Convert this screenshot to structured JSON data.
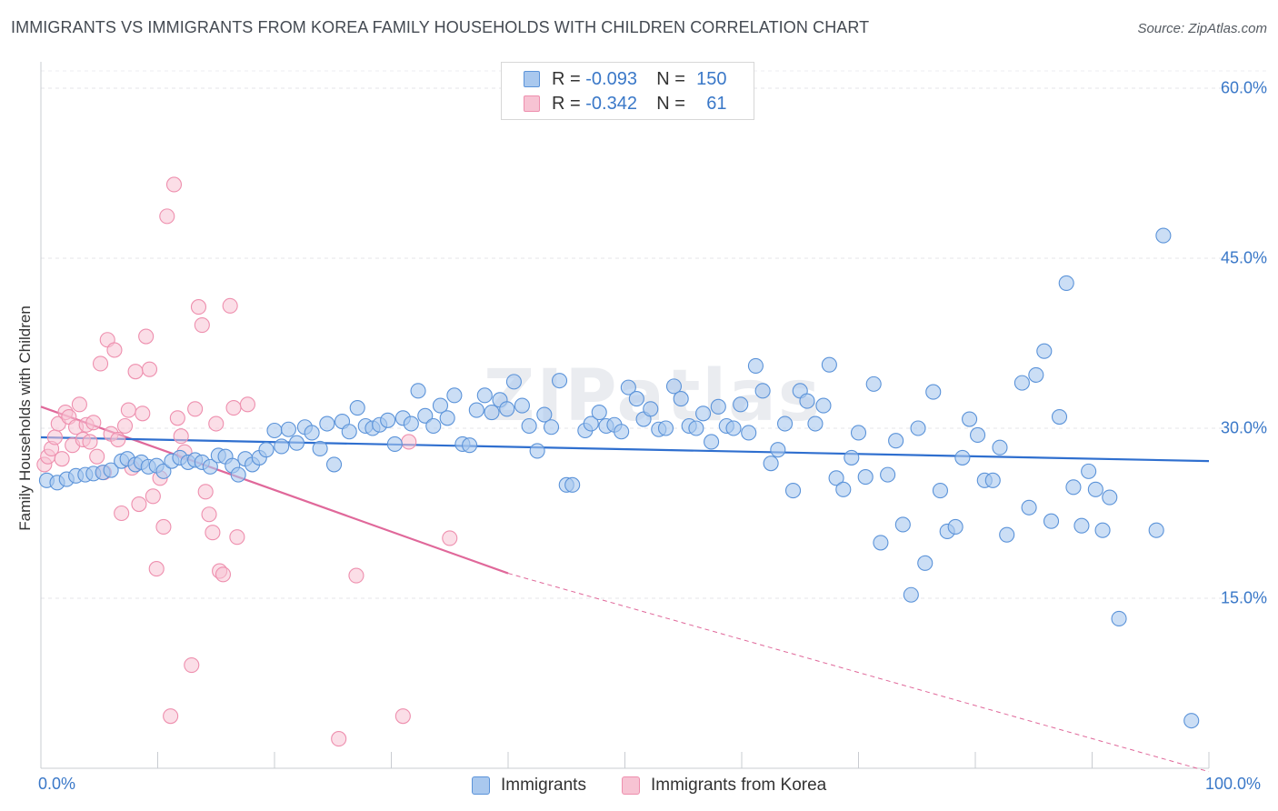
{
  "title": "IMMIGRANTS VS IMMIGRANTS FROM KOREA FAMILY HOUSEHOLDS WITH CHILDREN CORRELATION CHART",
  "source": "Source: ZipAtlas.com",
  "watermark": "ZIPatlas",
  "legend": {
    "r_label": "R =",
    "n_label": "N =",
    "rows": [
      {
        "r": "-0.093",
        "n": "150",
        "color": "#6fa3e0"
      },
      {
        "r": "-0.342",
        "n": "61",
        "color": "#f2a1bc"
      }
    ]
  },
  "bottom_legend": [
    {
      "label": "Immigrants",
      "color": "#6fa3e0"
    },
    {
      "label": "Immigrants from Korea",
      "color": "#f2a1bc"
    }
  ],
  "colors": {
    "blue_fill": "#a9c8ee",
    "blue_stroke": "#5b93d9",
    "blue_line": "#2f6fcf",
    "pink_fill": "#f7c3d3",
    "pink_stroke": "#ee8fae",
    "pink_line": "#e0689a",
    "tick_color": "#3a78c8"
  },
  "chart_data": {
    "type": "scatter",
    "title": "IMMIGRANTS VS IMMIGRANTS FROM KOREA FAMILY HOUSEHOLDS WITH CHILDREN CORRELATION CHART",
    "xlabel": "",
    "ylabel": "Family Households with Children",
    "xlim": [
      0,
      100
    ],
    "ylim": [
      0,
      60
    ],
    "x_tick_labels": [
      "0.0%",
      "100.0%"
    ],
    "y_ticks": [
      15,
      30,
      45,
      60
    ],
    "y_tick_labels": [
      "15.0%",
      "30.0%",
      "45.0%",
      "60.0%"
    ],
    "grid": true,
    "legend_position": "top-center",
    "series": [
      {
        "name": "Immigrants",
        "r": -0.093,
        "n": 150,
        "trend": {
          "x": [
            0,
            100
          ],
          "y": [
            29.2,
            27.1
          ]
        },
        "points": [
          [
            0.5,
            25.4
          ],
          [
            1.4,
            25.2
          ],
          [
            2.2,
            25.5
          ],
          [
            3.0,
            25.8
          ],
          [
            3.8,
            25.9
          ],
          [
            4.5,
            26.0
          ],
          [
            5.3,
            26.1
          ],
          [
            6.0,
            26.3
          ],
          [
            6.9,
            27.1
          ],
          [
            7.4,
            27.3
          ],
          [
            8.1,
            26.8
          ],
          [
            8.6,
            27.0
          ],
          [
            9.2,
            26.6
          ],
          [
            9.9,
            26.7
          ],
          [
            10.5,
            26.2
          ],
          [
            11.2,
            27.1
          ],
          [
            11.9,
            27.4
          ],
          [
            12.6,
            27.0
          ],
          [
            13.2,
            27.2
          ],
          [
            13.8,
            27.0
          ],
          [
            14.5,
            26.6
          ],
          [
            15.2,
            27.6
          ],
          [
            15.8,
            27.5
          ],
          [
            16.4,
            26.7
          ],
          [
            16.9,
            25.9
          ],
          [
            17.5,
            27.3
          ],
          [
            18.1,
            26.8
          ],
          [
            18.7,
            27.4
          ],
          [
            19.3,
            28.1
          ],
          [
            20.0,
            29.8
          ],
          [
            20.6,
            28.4
          ],
          [
            21.2,
            29.9
          ],
          [
            21.9,
            28.7
          ],
          [
            22.6,
            30.1
          ],
          [
            23.2,
            29.6
          ],
          [
            23.9,
            28.2
          ],
          [
            24.5,
            30.4
          ],
          [
            25.1,
            26.8
          ],
          [
            25.8,
            30.6
          ],
          [
            26.4,
            29.7
          ],
          [
            27.1,
            31.8
          ],
          [
            27.8,
            30.2
          ],
          [
            28.4,
            30.0
          ],
          [
            29.0,
            30.3
          ],
          [
            29.7,
            30.7
          ],
          [
            30.3,
            28.6
          ],
          [
            31.0,
            30.9
          ],
          [
            31.7,
            30.4
          ],
          [
            32.3,
            33.3
          ],
          [
            32.9,
            31.1
          ],
          [
            33.6,
            30.2
          ],
          [
            34.2,
            32.0
          ],
          [
            34.8,
            30.9
          ],
          [
            35.4,
            32.9
          ],
          [
            36.1,
            28.6
          ],
          [
            36.7,
            28.5
          ],
          [
            37.3,
            31.6
          ],
          [
            38.0,
            32.9
          ],
          [
            38.6,
            31.4
          ],
          [
            39.3,
            32.5
          ],
          [
            39.9,
            31.7
          ],
          [
            40.5,
            34.1
          ],
          [
            41.2,
            32.0
          ],
          [
            41.8,
            30.2
          ],
          [
            42.5,
            28.0
          ],
          [
            43.1,
            31.2
          ],
          [
            43.7,
            30.1
          ],
          [
            44.4,
            34.2
          ],
          [
            45.0,
            25.0
          ],
          [
            45.5,
            25.0
          ],
          [
            46.6,
            29.8
          ],
          [
            47.1,
            30.4
          ],
          [
            47.8,
            31.4
          ],
          [
            48.4,
            30.2
          ],
          [
            49.1,
            30.3
          ],
          [
            49.7,
            29.7
          ],
          [
            50.3,
            33.6
          ],
          [
            51.0,
            32.6
          ],
          [
            51.6,
            30.8
          ],
          [
            52.2,
            31.7
          ],
          [
            52.9,
            29.9
          ],
          [
            53.5,
            30.0
          ],
          [
            54.2,
            33.7
          ],
          [
            54.8,
            32.6
          ],
          [
            55.5,
            30.2
          ],
          [
            56.1,
            30.0
          ],
          [
            56.7,
            31.3
          ],
          [
            57.4,
            28.8
          ],
          [
            58.0,
            31.9
          ],
          [
            58.7,
            30.2
          ],
          [
            59.3,
            30.0
          ],
          [
            59.9,
            32.1
          ],
          [
            60.6,
            29.6
          ],
          [
            61.2,
            35.5
          ],
          [
            61.8,
            33.3
          ],
          [
            62.5,
            26.9
          ],
          [
            63.1,
            28.1
          ],
          [
            63.7,
            30.4
          ],
          [
            64.4,
            24.5
          ],
          [
            65.0,
            33.3
          ],
          [
            65.6,
            32.4
          ],
          [
            66.3,
            30.4
          ],
          [
            67.0,
            32.0
          ],
          [
            67.5,
            35.6
          ],
          [
            68.1,
            25.6
          ],
          [
            68.7,
            24.6
          ],
          [
            69.4,
            27.4
          ],
          [
            70.0,
            29.6
          ],
          [
            70.6,
            25.7
          ],
          [
            71.3,
            33.9
          ],
          [
            71.9,
            19.9
          ],
          [
            72.5,
            25.9
          ],
          [
            73.2,
            28.9
          ],
          [
            73.8,
            21.5
          ],
          [
            74.5,
            15.3
          ],
          [
            75.1,
            30.0
          ],
          [
            75.7,
            18.1
          ],
          [
            76.4,
            33.2
          ],
          [
            77.0,
            24.5
          ],
          [
            77.6,
            20.9
          ],
          [
            78.3,
            21.3
          ],
          [
            78.9,
            27.4
          ],
          [
            79.5,
            30.8
          ],
          [
            80.2,
            29.4
          ],
          [
            80.8,
            25.4
          ],
          [
            81.5,
            25.4
          ],
          [
            82.1,
            28.3
          ],
          [
            82.7,
            20.6
          ],
          [
            84.0,
            34.0
          ],
          [
            84.6,
            23.0
          ],
          [
            85.2,
            34.7
          ],
          [
            85.9,
            36.8
          ],
          [
            86.5,
            21.8
          ],
          [
            87.2,
            31.0
          ],
          [
            87.8,
            42.8
          ],
          [
            88.4,
            24.8
          ],
          [
            89.1,
            21.4
          ],
          [
            89.7,
            26.2
          ],
          [
            90.3,
            24.6
          ],
          [
            90.9,
            21.0
          ],
          [
            91.5,
            23.9
          ],
          [
            92.3,
            13.2
          ],
          [
            95.5,
            21.0
          ],
          [
            96.1,
            47.0
          ],
          [
            98.5,
            4.2
          ]
        ]
      },
      {
        "name": "Immigrants from Korea",
        "r": -0.342,
        "n": 61,
        "trend": {
          "x": [
            0,
            40
          ],
          "y": [
            31.9,
            17.2
          ]
        },
        "trend_dashed": {
          "x": [
            40,
            100
          ],
          "y": [
            17.2,
            -0.3
          ]
        },
        "points": [
          [
            0.3,
            26.8
          ],
          [
            0.6,
            27.5
          ],
          [
            0.9,
            28.2
          ],
          [
            1.2,
            29.2
          ],
          [
            1.5,
            30.4
          ],
          [
            1.8,
            27.3
          ],
          [
            2.1,
            31.4
          ],
          [
            2.4,
            31.0
          ],
          [
            2.7,
            28.5
          ],
          [
            3.0,
            30.1
          ],
          [
            3.3,
            32.1
          ],
          [
            3.6,
            29.0
          ],
          [
            3.9,
            30.3
          ],
          [
            4.2,
            28.8
          ],
          [
            4.5,
            30.5
          ],
          [
            4.8,
            27.5
          ],
          [
            5.1,
            35.7
          ],
          [
            5.4,
            26.1
          ],
          [
            5.7,
            37.8
          ],
          [
            6.0,
            29.5
          ],
          [
            6.3,
            36.9
          ],
          [
            6.6,
            29.0
          ],
          [
            6.9,
            22.5
          ],
          [
            7.2,
            30.2
          ],
          [
            7.5,
            31.6
          ],
          [
            7.8,
            26.5
          ],
          [
            8.1,
            35.0
          ],
          [
            8.4,
            23.3
          ],
          [
            8.7,
            31.3
          ],
          [
            9.0,
            38.1
          ],
          [
            9.3,
            35.2
          ],
          [
            9.6,
            24.0
          ],
          [
            9.9,
            17.6
          ],
          [
            10.2,
            25.6
          ],
          [
            10.5,
            21.3
          ],
          [
            10.8,
            48.7
          ],
          [
            11.1,
            4.6
          ],
          [
            11.4,
            51.5
          ],
          [
            11.7,
            30.9
          ],
          [
            12.0,
            29.3
          ],
          [
            12.3,
            27.9
          ],
          [
            12.9,
            9.1
          ],
          [
            13.2,
            31.7
          ],
          [
            13.5,
            40.7
          ],
          [
            13.8,
            39.1
          ],
          [
            14.1,
            24.4
          ],
          [
            14.4,
            22.4
          ],
          [
            14.7,
            20.8
          ],
          [
            15.0,
            30.4
          ],
          [
            15.3,
            17.4
          ],
          [
            15.6,
            17.1
          ],
          [
            16.2,
            40.8
          ],
          [
            16.5,
            31.8
          ],
          [
            16.8,
            20.4
          ],
          [
            17.7,
            32.1
          ],
          [
            25.5,
            2.6
          ],
          [
            27.0,
            17.0
          ],
          [
            31.0,
            4.6
          ],
          [
            31.5,
            28.8
          ],
          [
            35.0,
            20.3
          ]
        ]
      }
    ]
  }
}
